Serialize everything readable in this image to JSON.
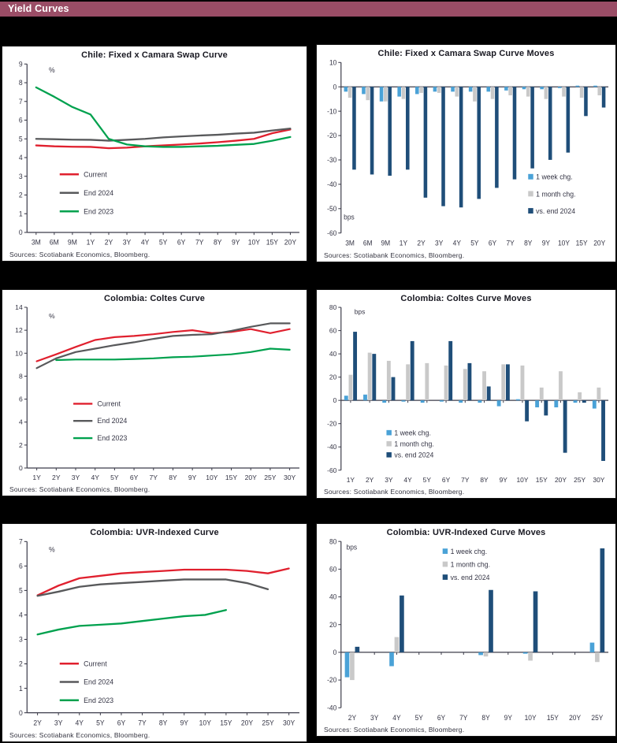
{
  "header": {
    "title": "Yield Curves",
    "bar_color": "#9a4d66"
  },
  "sources_label": "Sources: Scotiabank Economics, Bloomberg.",
  "colors": {
    "current_red": "#e0202e",
    "end2024_gray": "#58595b",
    "end2023_green": "#00a14e",
    "week_blue": "#4aa2d7",
    "month_gray": "#c9c9c9",
    "vs2024_navy": "#1f4e79"
  },
  "chart_data": [
    {
      "type": "line",
      "title": "Chile: Fixed x Camara Swap Curve",
      "unit": "%",
      "categories": [
        "3M",
        "6M",
        "9M",
        "1Y",
        "2Y",
        "3Y",
        "4Y",
        "5Y",
        "6Y",
        "7Y",
        "8Y",
        "9Y",
        "10Y",
        "15Y",
        "20Y"
      ],
      "ylim": [
        0,
        9
      ],
      "ystep": 1,
      "series": [
        {
          "name": "Current",
          "color": "#e0202e",
          "values": [
            4.65,
            4.6,
            4.58,
            4.57,
            4.5,
            4.53,
            4.6,
            4.65,
            4.7,
            4.75,
            4.82,
            4.9,
            5.0,
            5.3,
            5.5
          ]
        },
        {
          "name": "End 2024",
          "color": "#58595b",
          "values": [
            5.0,
            4.98,
            4.96,
            4.95,
            4.9,
            4.95,
            5.0,
            5.08,
            5.13,
            5.18,
            5.22,
            5.28,
            5.33,
            5.45,
            5.55
          ]
        },
        {
          "name": "End 2023",
          "color": "#00a14e",
          "values": [
            7.75,
            7.25,
            6.7,
            6.3,
            5.0,
            4.7,
            4.6,
            4.57,
            4.57,
            4.6,
            4.63,
            4.68,
            4.73,
            4.9,
            5.1
          ]
        }
      ],
      "legend": {
        "x": 0.12,
        "y": 0.655,
        "dy": 0.11,
        "marker": "line"
      },
      "unit_pos": {
        "x": 0.08,
        "y": 0.03
      }
    },
    {
      "type": "bar",
      "title": "Chile: Fixed x Camara Swap Curve Moves",
      "unit": "bps",
      "categories": [
        "3M",
        "6M",
        "9M",
        "1Y",
        "2Y",
        "3Y",
        "4Y",
        "5Y",
        "6Y",
        "7Y",
        "8Y",
        "9Y",
        "10Y",
        "15Y",
        "20Y"
      ],
      "ylim": [
        -60,
        10
      ],
      "ystep": 10,
      "series": [
        {
          "name": "1 week chg.",
          "color": "#4aa2d7",
          "values": [
            -2,
            -3,
            -6,
            -4,
            -3,
            -2,
            -2,
            -2,
            -2,
            -1.5,
            -1,
            -1,
            -0.5,
            0.5,
            0.5
          ]
        },
        {
          "name": "1 month chg.",
          "color": "#c9c9c9",
          "values": [
            -4.5,
            -5.5,
            -6,
            -5,
            -2.5,
            -2.5,
            -4,
            -6,
            -5,
            -3.5,
            -4,
            -5,
            -4,
            -4.5,
            -3.5
          ]
        },
        {
          "name": "vs. end 2024",
          "color": "#1f4e79",
          "values": [
            -34,
            -36,
            -36.5,
            -34,
            -45.5,
            -49,
            -49.5,
            -46,
            -41.5,
            -38,
            -33.5,
            -30,
            -27,
            -12,
            -8.5
          ]
        }
      ],
      "legend": {
        "x": 0.7,
        "y": 0.671,
        "dy": 0.1,
        "marker": "square"
      },
      "unit_pos": {
        "x": 0.01,
        "y": 0.9
      }
    },
    {
      "type": "line",
      "title": "Colombia: Coltes Curve",
      "unit": "%",
      "categories": [
        "1Y",
        "2Y",
        "3Y",
        "4Y",
        "5Y",
        "6Y",
        "7Y",
        "8Y",
        "9Y",
        "10Y",
        "15Y",
        "20Y",
        "25Y",
        "30Y"
      ],
      "ylim": [
        0,
        14
      ],
      "ystep": 2,
      "series": [
        {
          "name": "Current",
          "color": "#e0202e",
          "values": [
            9.3,
            9.9,
            10.55,
            11.15,
            11.4,
            11.5,
            11.65,
            11.85,
            12.0,
            11.75,
            11.85,
            12.1,
            11.75,
            12.1
          ]
        },
        {
          "name": "End 2024",
          "color": "#58595b",
          "values": [
            8.7,
            9.55,
            10.1,
            10.4,
            10.7,
            10.95,
            11.25,
            11.5,
            11.6,
            11.65,
            11.95,
            12.3,
            12.6,
            12.6
          ]
        },
        {
          "name": "End 2023",
          "color": "#00a14e",
          "values": [
            null,
            9.4,
            9.45,
            9.45,
            9.45,
            9.5,
            9.55,
            9.65,
            9.7,
            9.8,
            9.9,
            10.1,
            10.4,
            10.3
          ]
        }
      ],
      "legend": {
        "x": 0.17,
        "y": 0.6,
        "dy": 0.107,
        "marker": "line"
      },
      "unit_pos": {
        "x": 0.08,
        "y": 0.05
      }
    },
    {
      "type": "bar",
      "title": "Colombia: Coltes Curve Moves",
      "unit": "bps",
      "categories": [
        "1Y",
        "2Y",
        "3Y",
        "4Y",
        "5Y",
        "6Y",
        "7Y",
        "8Y",
        "9Y",
        "10Y",
        "15Y",
        "20Y",
        "25Y",
        "30Y"
      ],
      "ylim": [
        -60,
        80
      ],
      "ystep": 20,
      "series": [
        {
          "name": "1 week chg.",
          "color": "#4aa2d7",
          "values": [
            4,
            5,
            -2,
            -1,
            -2,
            -1,
            -2,
            -2,
            -5,
            1,
            -6,
            -6,
            -2,
            -7
          ]
        },
        {
          "name": "1 month chg.",
          "color": "#c9c9c9",
          "values": [
            22,
            41,
            34,
            31,
            32,
            30,
            27,
            25,
            31,
            30,
            11,
            25,
            7,
            11
          ]
        },
        {
          "name": "vs. end 2024",
          "color": "#1f4e79",
          "values": [
            59,
            40,
            20,
            51,
            0,
            51,
            32,
            12,
            31,
            -18,
            -13,
            -45,
            -2,
            -52
          ]
        }
      ],
      "legend": {
        "x": 0.17,
        "y": 0.771,
        "dy": 0.068,
        "marker": "square"
      },
      "unit_pos": {
        "x": 0.05,
        "y": 0.02
      }
    },
    {
      "type": "line",
      "title": "Colombia: UVR-Indexed Curve",
      "unit": "%",
      "categories": [
        "2Y",
        "3Y",
        "4Y",
        "5Y",
        "6Y",
        "7Y",
        "8Y",
        "9Y",
        "10Y",
        "15Y",
        "20Y",
        "25Y",
        "30Y"
      ],
      "ylim": [
        0,
        7
      ],
      "ystep": 1,
      "series": [
        {
          "name": "Current",
          "color": "#e0202e",
          "values": [
            4.8,
            5.2,
            5.5,
            5.6,
            5.7,
            5.75,
            5.8,
            5.85,
            5.85,
            5.85,
            5.8,
            5.7,
            5.9
          ]
        },
        {
          "name": "End 2024",
          "color": "#58595b",
          "values": [
            4.78,
            4.95,
            5.15,
            5.25,
            5.3,
            5.35,
            5.4,
            5.45,
            5.45,
            5.45,
            5.3,
            5.05,
            null
          ]
        },
        {
          "name": "End 2023",
          "color": "#00a14e",
          "values": [
            3.2,
            3.4,
            3.55,
            3.6,
            3.65,
            3.75,
            3.85,
            3.95,
            4.0,
            4.2,
            null,
            null,
            null
          ]
        }
      ],
      "legend": {
        "x": 0.12,
        "y": 0.713,
        "dy": 0.107,
        "marker": "line"
      },
      "unit_pos": {
        "x": 0.08,
        "y": 0.04
      }
    },
    {
      "type": "bar",
      "title": "Colombia: UVR-Indexed Curve Moves",
      "unit": "bps",
      "categories": [
        "2Y",
        "3Y",
        "4Y",
        "5Y",
        "6Y",
        "7Y",
        "8Y",
        "9Y",
        "10Y",
        "15Y",
        "20Y",
        "25Y"
      ],
      "ylim": [
        -40,
        80
      ],
      "ystep": 20,
      "series": [
        {
          "name": "1 week chg.",
          "color": "#4aa2d7",
          "values": [
            -18,
            0,
            -10,
            0,
            0,
            0,
            -2,
            0,
            -1,
            0,
            0,
            7
          ]
        },
        {
          "name": "1 month chg.",
          "color": "#c9c9c9",
          "values": [
            -20,
            0,
            11,
            0,
            0,
            0,
            -3,
            0,
            -6,
            0,
            0,
            -7
          ]
        },
        {
          "name": "vs. end 2024",
          "color": "#1f4e79",
          "values": [
            4,
            0,
            41,
            0,
            0,
            0,
            45,
            0,
            44,
            0,
            0,
            75
          ]
        }
      ],
      "legend": {
        "x": 0.38,
        "y": 0.06,
        "dy": 0.078,
        "marker": "square"
      },
      "unit_pos": {
        "x": 0.02,
        "y": 0.03
      }
    }
  ]
}
